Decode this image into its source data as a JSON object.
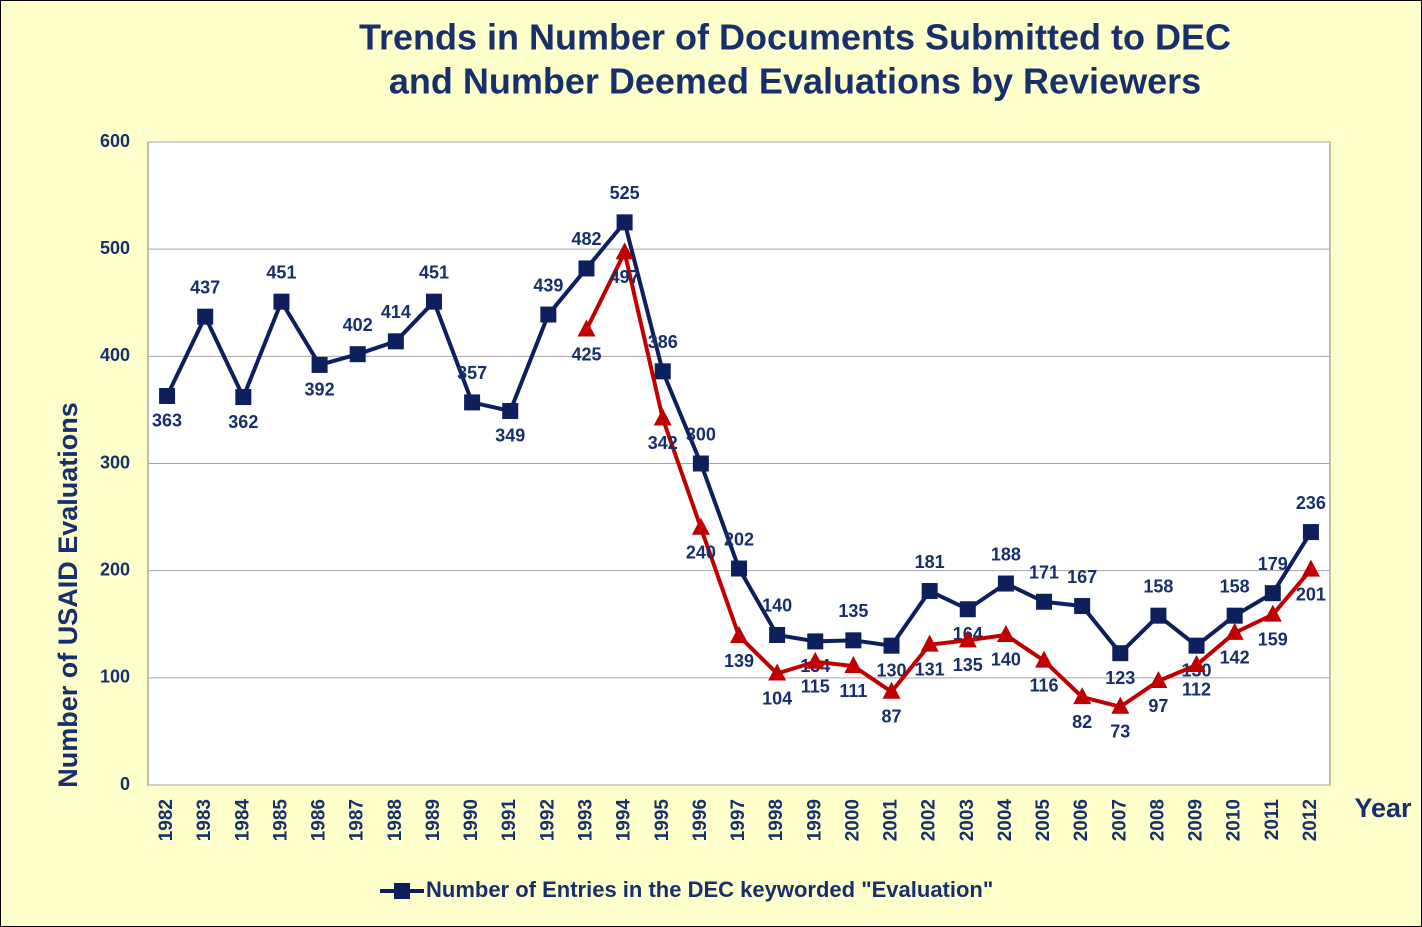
{
  "chart_data": {
    "type": "line",
    "title": [
      "Trends in Number of Documents Submitted to DEC",
      "and Number Deemed Evaluations by Reviewers"
    ],
    "y_label": "Number of USAID Evaluations",
    "x_label": "Year",
    "categories": [
      "1982",
      "1983",
      "1984",
      "1985",
      "1986",
      "1987",
      "1988",
      "1989",
      "1990",
      "1991",
      "1992",
      "1993",
      "1994",
      "1995",
      "1996",
      "1997",
      "1998",
      "1999",
      "2000",
      "2001",
      "2002",
      "2003",
      "2004",
      "2005",
      "2006",
      "2007",
      "2008",
      "2009",
      "2010",
      "2011",
      "2012"
    ],
    "series": [
      {
        "name": "Number of Entries in the DEC keyworded \"Evaluation\"",
        "color": "#0d1f5c",
        "marker": "square",
        "values": [
          363,
          437,
          362,
          451,
          392,
          402,
          414,
          451,
          357,
          349,
          439,
          482,
          525,
          386,
          300,
          202,
          140,
          134,
          135,
          130,
          181,
          164,
          188,
          171,
          167,
          123,
          158,
          130,
          158,
          179,
          236
        ]
      },
      {
        "color": "#c00000",
        "marker": "triangle",
        "values": [
          null,
          null,
          null,
          null,
          null,
          null,
          null,
          null,
          null,
          null,
          null,
          425,
          497,
          342,
          240,
          139,
          104,
          115,
          111,
          87,
          131,
          135,
          140,
          116,
          82,
          73,
          97,
          112,
          142,
          159,
          201
        ]
      }
    ],
    "ylim": [
      0,
      600
    ],
    "yticks": [
      0,
      100,
      200,
      300,
      400,
      500,
      600
    ],
    "grid": true
  }
}
